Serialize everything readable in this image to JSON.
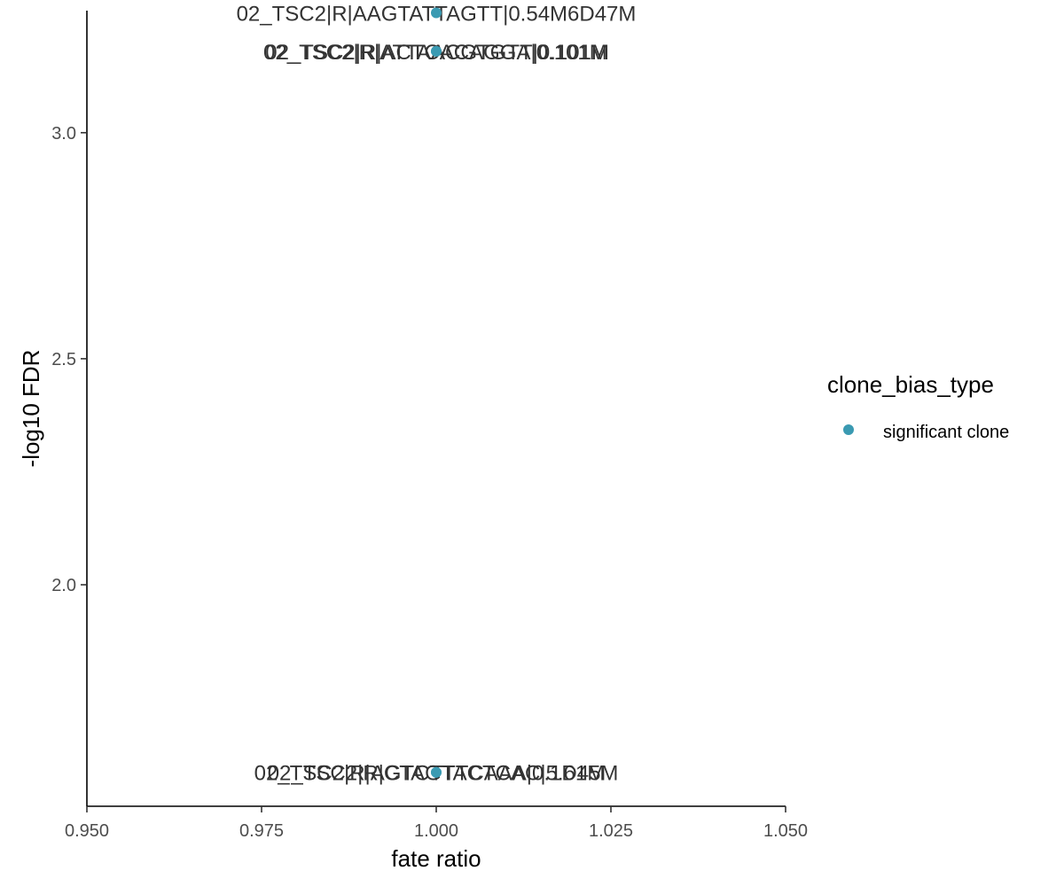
{
  "chart_data": {
    "type": "scatter",
    "title": "",
    "xlabel": "fate ratio",
    "ylabel": "-log10 FDR",
    "xlim": [
      0.95,
      1.05
    ],
    "ylim": [
      1.51,
      3.27
    ],
    "x_ticks": [
      "0.950",
      "0.975",
      "1.000",
      "1.025",
      "1.050"
    ],
    "x_tick_values": [
      0.95,
      0.975,
      1.0,
      1.025,
      1.05
    ],
    "y_ticks": [
      "2.0",
      "2.5",
      "3.0"
    ],
    "y_tick_values": [
      2.0,
      2.5,
      3.0
    ],
    "grid": false,
    "legend": {
      "title": "clone_bias_type",
      "position": "right",
      "entries": [
        {
          "label": "significant clone",
          "color": "#3a9ab2"
        }
      ]
    },
    "series": [
      {
        "name": "significant clone",
        "color": "#3a9ab2",
        "points": [
          {
            "x": 1.0,
            "y": 3.265,
            "label": "02_TSC2|R|AAGTATTAGTT|0.54M6D47M"
          },
          {
            "x": 1.0,
            "y": 3.18,
            "label": "02_TSC2|R|ATTAACGTGTT|0.101M"
          },
          {
            "x": 1.0,
            "y": 3.18,
            "label": "02_TSC2|R|ACTCACAGGA|0.101M"
          },
          {
            "x": 1.0,
            "y": 1.585,
            "label": "02_TSC2|R|CTAGTACTCAC|5.61M"
          },
          {
            "x": 1.0,
            "y": 1.585,
            "label": "02_TSC2|R|AGTCTTTCAAA|0.1D45M"
          }
        ]
      }
    ]
  }
}
